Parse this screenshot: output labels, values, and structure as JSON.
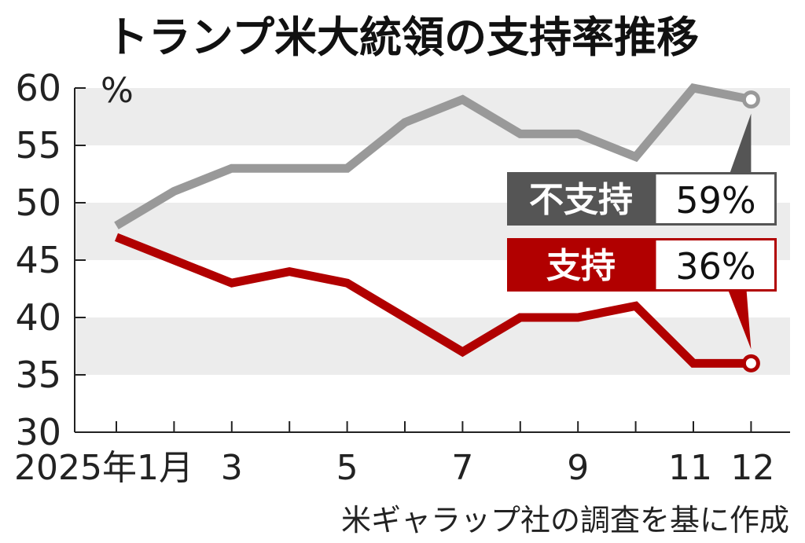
{
  "title": "トランプ米大統領の支持率推移",
  "source": "米ギャラップ社の調査を基に作成",
  "colors": {
    "disapprove": "#999999",
    "approve": "#b10000",
    "disapprove_label_bg": "#555555",
    "band": "#ececec"
  },
  "chart_data": {
    "type": "line",
    "x": [
      "2025-01",
      "2025-02",
      "2025-03",
      "2025-04",
      "2025-05",
      "2025-06",
      "2025-07",
      "2025-08",
      "2025-09",
      "2025-10",
      "2025-11",
      "2025-12"
    ],
    "x_tick_labels": [
      "2025年1月",
      "3",
      "5",
      "7",
      "9",
      "11",
      "12"
    ],
    "y_unit": "%",
    "ylim": [
      30,
      60
    ],
    "y_ticks": [
      30,
      35,
      40,
      45,
      50,
      55,
      60
    ],
    "grid": "alternating horizontal bands",
    "series": [
      {
        "name": "不支持",
        "color": "#999999",
        "values": [
          48,
          51,
          53,
          53,
          53,
          57,
          59,
          56,
          56,
          54,
          60,
          59
        ],
        "latest_label": "59%"
      },
      {
        "name": "支持",
        "color": "#b10000",
        "values": [
          47,
          45,
          43,
          44,
          43,
          40,
          37,
          40,
          40,
          41,
          36,
          36
        ],
        "latest_label": "36%"
      }
    ]
  }
}
